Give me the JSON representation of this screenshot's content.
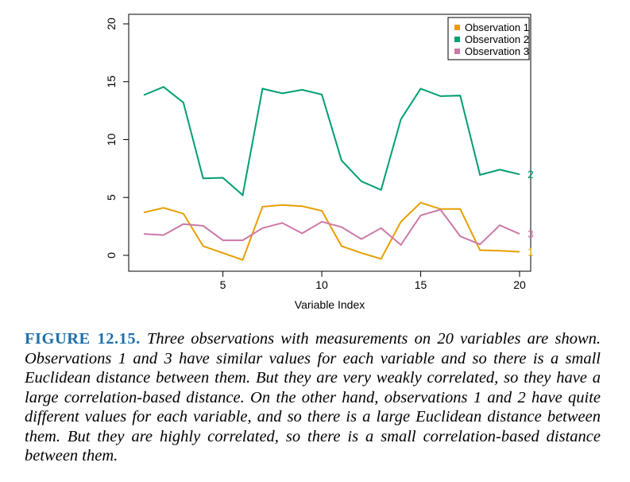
{
  "chart_data": {
    "type": "line",
    "title": "",
    "xlabel": "Variable Index",
    "ylabel": "",
    "xlim": [
      1,
      20
    ],
    "ylim": [
      0,
      20
    ],
    "x_ticks": [
      5,
      10,
      15,
      20
    ],
    "y_ticks": [
      0,
      5,
      10,
      15,
      20
    ],
    "grid": false,
    "legend_position": "top-right",
    "x": [
      1,
      2,
      3,
      4,
      5,
      6,
      7,
      8,
      9,
      10,
      11,
      12,
      13,
      14,
      15,
      16,
      17,
      18,
      19,
      20
    ],
    "series": [
      {
        "name": "Observation 1",
        "end_label": "1",
        "color": "#e69f00",
        "values": [
          3.7,
          4.1,
          3.6,
          0.8,
          0.2,
          -0.4,
          4.2,
          4.35,
          4.25,
          3.85,
          0.8,
          0.2,
          -0.3,
          2.9,
          4.55,
          4.0,
          4.0,
          0.45,
          0.4,
          0.3
        ]
      },
      {
        "name": "Observation 2",
        "end_label": "2",
        "color": "#009e73",
        "values": [
          13.85,
          14.55,
          13.2,
          6.65,
          6.7,
          5.2,
          14.4,
          14.0,
          14.3,
          13.9,
          8.2,
          6.4,
          5.65,
          11.75,
          14.4,
          13.75,
          13.8,
          6.95,
          7.4,
          7.0
        ]
      },
      {
        "name": "Observation 3",
        "end_label": "3",
        "color": "#cc79a7",
        "values": [
          1.85,
          1.75,
          2.7,
          2.55,
          1.3,
          1.3,
          2.35,
          2.8,
          1.9,
          2.9,
          2.45,
          1.4,
          2.35,
          0.9,
          3.45,
          3.95,
          1.65,
          0.95,
          2.6,
          1.85
        ]
      }
    ]
  },
  "caption": {
    "label": "FIGURE 12.15.",
    "text": "Three observations with measurements on 20 variables are shown. Observations 1 and 3 have similar values for each variable and so there is a small Euclidean distance between them. But they are very weakly correlated, so they have a large correlation-based distance. On the other hand, observations 1 and 2 have quite different values for each variable, and so there is a large Euclidean distance between them. But they are highly correlated, so there is a small correlation-based distance between them."
  }
}
